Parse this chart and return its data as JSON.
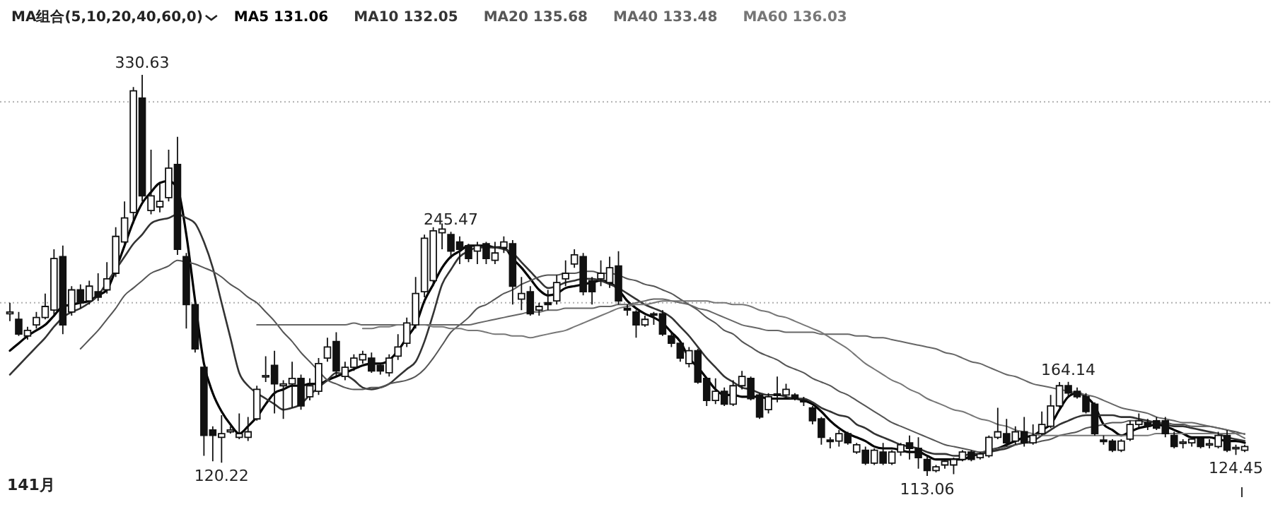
{
  "chart_data": {
    "type": "candlestick",
    "legend_title": "MA组合(5,10,20,40,60,0)",
    "legend": "top left",
    "grid": "y",
    "yticks": [
      {
        "value": 316,
        "label": null
      },
      {
        "value": 207,
        "label": null
      }
    ],
    "color": "#111111",
    "categories": [
      null,
      null,
      null,
      null,
      null,
      null,
      null,
      null,
      null,
      null,
      null,
      null,
      null,
      null,
      null,
      null,
      null,
      null,
      null,
      null,
      null,
      null,
      null,
      null,
      null,
      null,
      null,
      null,
      null,
      null,
      null,
      null,
      null,
      null,
      null,
      null,
      null,
      null,
      null,
      null,
      null,
      null,
      null,
      null,
      null,
      null,
      null,
      null,
      null,
      null,
      null,
      null,
      null,
      null,
      null,
      null,
      null,
      null,
      null,
      null,
      null,
      null,
      null,
      null,
      null,
      null,
      null,
      null,
      null,
      null,
      null,
      null,
      null,
      null,
      null,
      null,
      null,
      null,
      null,
      null,
      null,
      null,
      null,
      null,
      null,
      null,
      null,
      null,
      null,
      null,
      null,
      null,
      null,
      null,
      null,
      null,
      null,
      null,
      null,
      null,
      null,
      null,
      null,
      null,
      null,
      null,
      null,
      null,
      null,
      null,
      null,
      null,
      null,
      null,
      null,
      null,
      null,
      null,
      null,
      null,
      null,
      null,
      null,
      null,
      null,
      null,
      null,
      null,
      null,
      null,
      null,
      null,
      null,
      null,
      null,
      null,
      null,
      null,
      null,
      null,
      null
    ],
    "ohlc": [
      [
        201,
        207,
        197,
        202
      ],
      [
        198,
        202,
        189,
        190
      ],
      [
        189,
        194,
        187,
        192
      ],
      [
        195,
        202,
        193,
        199
      ],
      [
        199,
        212,
        198,
        205
      ],
      [
        203,
        236,
        200,
        231
      ],
      [
        232,
        238,
        190,
        195
      ],
      [
        202,
        216,
        200,
        214
      ],
      [
        214,
        217,
        204,
        207
      ],
      [
        208,
        219,
        206,
        216
      ],
      [
        213,
        223,
        208,
        210
      ],
      [
        214,
        229,
        212,
        220
      ],
      [
        223,
        248,
        221,
        243
      ],
      [
        240,
        262,
        238,
        253
      ],
      [
        256,
        324,
        250,
        322
      ],
      [
        318,
        330.63,
        262,
        265
      ],
      [
        257,
        290,
        255,
        265
      ],
      [
        259,
        272,
        256,
        262
      ],
      [
        264,
        290,
        262,
        280
      ],
      [
        282,
        297,
        233,
        236
      ],
      [
        232,
        234,
        193,
        206
      ],
      [
        206,
        206,
        180,
        182
      ],
      [
        172,
        172,
        124,
        135
      ],
      [
        138,
        140,
        121,
        135
      ],
      [
        134,
        146,
        120.22,
        136
      ],
      [
        137,
        140,
        136,
        138
      ],
      [
        134,
        147,
        133,
        136
      ],
      [
        134,
        145,
        132,
        137
      ],
      [
        144,
        162,
        143,
        160
      ],
      [
        167,
        178,
        164,
        167.5
      ],
      [
        173,
        181,
        147,
        163
      ],
      [
        162,
        165,
        144,
        163
      ],
      [
        163,
        175,
        150,
        166
      ],
      [
        166,
        168,
        149,
        151
      ],
      [
        156,
        166,
        154,
        162
      ],
      [
        159,
        177,
        157,
        174
      ],
      [
        177,
        188,
        175,
        183
      ],
      [
        186,
        191,
        167,
        170
      ],
      [
        167,
        175,
        165,
        172
      ],
      [
        172,
        179,
        170,
        177
      ],
      [
        176,
        181,
        174,
        179
      ],
      [
        177,
        180,
        169,
        170
      ],
      [
        173,
        174,
        168,
        170
      ],
      [
        169,
        179,
        167,
        177
      ],
      [
        178,
        190,
        176,
        183
      ],
      [
        185,
        199,
        183,
        196
      ],
      [
        195,
        221,
        193,
        212
      ],
      [
        213,
        244,
        210,
        242
      ],
      [
        219,
        248,
        216,
        246
      ],
      [
        245,
        250,
        236,
        247
      ],
      [
        244,
        245.47,
        231,
        235
      ],
      [
        240,
        243,
        228,
        236
      ],
      [
        238,
        239,
        229,
        231
      ],
      [
        235,
        240,
        228,
        238
      ],
      [
        239,
        240,
        228,
        231
      ],
      [
        230,
        240,
        228,
        234
      ],
      [
        237,
        243,
        234,
        240
      ],
      [
        239,
        241,
        206,
        216
      ],
      [
        209,
        221,
        203,
        212
      ],
      [
        213,
        216,
        200,
        201
      ],
      [
        203,
        207,
        200,
        205
      ],
      [
        207,
        214,
        203,
        206
      ],
      [
        208,
        222,
        206,
        218
      ],
      [
        220,
        230,
        216,
        223
      ],
      [
        228,
        236,
        226,
        233
      ],
      [
        232,
        234,
        211,
        213
      ],
      [
        219,
        221,
        206,
        213
      ],
      [
        220,
        230,
        216,
        223
      ],
      [
        218,
        232,
        215,
        226
      ],
      [
        227,
        235,
        206,
        208
      ],
      [
        204,
        206,
        200,
        203
      ],
      [
        202,
        203,
        188,
        195
      ],
      [
        195,
        200,
        194,
        198
      ],
      [
        201,
        202,
        195,
        200.5
      ],
      [
        201,
        203,
        189,
        190
      ],
      [
        189,
        191,
        183,
        185
      ],
      [
        185,
        186,
        175,
        177
      ],
      [
        174,
        183,
        172,
        181
      ],
      [
        181,
        182,
        163,
        164
      ],
      [
        166,
        166,
        151,
        154
      ],
      [
        154,
        166,
        152,
        159
      ],
      [
        159,
        161,
        151,
        152
      ],
      [
        152,
        165,
        151,
        162
      ],
      [
        162,
        170,
        160,
        167
      ],
      [
        166,
        167,
        154,
        155
      ],
      [
        157,
        158,
        144,
        145
      ],
      [
        149,
        158,
        147,
        156
      ],
      [
        157,
        167,
        153,
        157.5
      ],
      [
        157,
        163,
        155,
        160
      ],
      [
        157,
        158,
        154,
        155
      ],
      [
        154,
        156,
        151,
        153.5
      ],
      [
        150,
        151,
        141,
        143
      ],
      [
        144,
        145,
        130,
        134
      ],
      [
        132,
        134,
        128,
        132.5
      ],
      [
        132,
        138,
        129,
        136
      ],
      [
        136,
        137,
        130,
        131
      ],
      [
        126,
        131,
        125,
        130
      ],
      [
        127,
        129,
        119,
        120
      ],
      [
        120,
        128,
        119,
        127
      ],
      [
        126,
        131,
        119,
        120
      ],
      [
        120,
        127,
        119,
        126
      ],
      [
        126,
        131,
        124,
        130
      ],
      [
        131,
        135,
        122,
        128
      ],
      [
        128,
        134,
        117,
        123
      ],
      [
        122,
        124,
        113.06,
        116
      ],
      [
        116,
        119,
        115,
        118
      ],
      [
        119,
        122,
        117,
        121
      ],
      [
        119,
        123,
        114,
        122
      ],
      [
        122,
        127,
        121,
        126
      ],
      [
        126,
        127,
        121,
        122
      ],
      [
        123,
        126,
        122,
        125
      ],
      [
        124,
        135,
        123,
        134
      ],
      [
        134,
        150,
        133,
        137
      ],
      [
        136,
        144,
        129,
        131
      ],
      [
        132,
        140,
        130,
        137
      ],
      [
        137,
        145,
        129,
        131
      ],
      [
        131,
        141,
        130,
        135
      ],
      [
        136,
        148,
        135,
        141
      ],
      [
        140,
        157,
        139,
        151
      ],
      [
        151,
        164,
        150,
        162
      ],
      [
        162,
        164.14,
        156,
        158
      ],
      [
        159,
        161,
        155,
        156
      ],
      [
        156,
        158,
        147,
        148
      ],
      [
        152,
        153,
        135,
        136
      ],
      [
        132,
        135,
        130,
        132.5
      ],
      [
        132,
        133,
        126,
        127
      ],
      [
        127,
        133,
        126,
        132
      ],
      [
        133,
        143,
        132,
        141
      ],
      [
        141,
        147,
        139,
        143
      ],
      [
        142,
        144,
        138,
        140
      ],
      [
        143,
        145,
        138,
        139
      ],
      [
        143,
        145,
        134,
        136
      ],
      [
        135,
        137,
        128,
        129
      ],
      [
        131,
        133,
        128,
        131.5
      ],
      [
        131,
        134,
        129,
        133
      ],
      [
        133,
        134,
        128,
        129
      ],
      [
        130,
        133,
        128,
        130.5
      ],
      [
        129,
        137,
        128,
        135
      ],
      [
        135,
        138,
        126,
        127
      ],
      [
        128,
        130,
        124.45,
        128.5
      ],
      [
        127,
        130,
        126,
        129
      ]
    ],
    "series": [
      {
        "name": "MA5 131.06",
        "type": "line",
        "color": "#000000",
        "values": [
          181,
          185,
          189,
          192,
          195,
          200,
          205,
          206,
          207,
          208,
          211,
          214,
          225,
          238,
          251,
          261,
          267,
          272,
          273,
          269,
          244,
          208,
          174,
          158,
          148,
          141,
          136,
          140,
          145,
          152,
          158,
          160,
          162,
          162,
          163,
          163,
          165,
          167,
          169,
          171,
          173,
          174,
          174,
          176,
          181,
          188,
          195,
          208,
          217,
          226,
          232,
          235,
          238,
          238,
          238,
          237,
          237,
          231,
          226,
          220,
          214,
          211,
          212,
          215,
          216,
          217,
          218,
          219,
          218,
          214,
          208,
          204,
          201,
          199,
          196,
          191,
          186,
          177,
          172,
          166,
          160,
          157,
          157,
          156,
          156,
          156,
          155,
          155,
          155,
          155,
          154,
          152,
          148,
          143,
          139,
          136,
          134,
          132,
          129,
          128,
          128,
          127,
          126,
          126,
          124,
          122,
          122,
          122,
          122,
          124,
          125,
          127,
          128,
          130,
          132,
          134,
          135,
          138,
          141,
          149,
          156,
          158,
          156,
          151,
          141,
          138,
          135,
          137,
          139,
          140,
          141,
          140,
          138,
          136,
          134,
          134,
          134,
          133,
          132,
          132,
          131.06
        ]
      },
      {
        "name": "MA10 132.05",
        "type": "line",
        "color": "#333333",
        "values": [
          168,
          173,
          178,
          183,
          188,
          194,
          199,
          202,
          204,
          207,
          211,
          218,
          225,
          232,
          239,
          244,
          250,
          252,
          253,
          255,
          253,
          250,
          240,
          226,
          207,
          188,
          169,
          162,
          158,
          155,
          152,
          149,
          150,
          152,
          157,
          161,
          165,
          169,
          168,
          165,
          161,
          160,
          161,
          163,
          167,
          171,
          175,
          186,
          201,
          217,
          225,
          232,
          235,
          237,
          237,
          237,
          236,
          234,
          229,
          224,
          219,
          215,
          216,
          218,
          219,
          220,
          220,
          219,
          217,
          215,
          212,
          209,
          206,
          204,
          202,
          199,
          194,
          189,
          183,
          177,
          172,
          167,
          164,
          161,
          160,
          158,
          157,
          157,
          156,
          155,
          155,
          153,
          150,
          148,
          146,
          145,
          141,
          139,
          136,
          134,
          132,
          130,
          129,
          128,
          126,
          125,
          125,
          124,
          124,
          125,
          125,
          126,
          127,
          128,
          130,
          131,
          132,
          135,
          138,
          141,
          143,
          145,
          146,
          146,
          146,
          146,
          145,
          145,
          144,
          143,
          142,
          141,
          140,
          140,
          139,
          138,
          137,
          136,
          134,
          133,
          132.05
        ]
      },
      {
        "name": "MA20 135.68",
        "type": "line",
        "color": "#555555",
        "values": [
          null,
          null,
          null,
          null,
          null,
          null,
          null,
          null,
          182,
          187,
          192,
          198,
          204,
          211,
          215,
          219,
          223,
          225,
          227,
          230,
          229,
          228,
          226,
          224,
          221,
          217,
          214,
          210,
          207,
          202,
          197,
          191,
          186,
          180,
          175,
          170,
          165,
          163,
          161,
          160,
          160,
          161,
          161,
          163,
          164,
          165,
          167,
          171,
          177,
          184,
          191,
          195,
          199,
          204,
          206,
          209,
          212,
          214,
          217,
          219,
          221,
          222,
          222,
          223,
          223,
          224,
          224,
          223,
          223,
          222,
          220,
          219,
          217,
          216,
          214,
          212,
          209,
          206,
          203,
          199,
          196,
          192,
          190,
          186,
          183,
          180,
          178,
          176,
          173,
          171,
          169,
          166,
          164,
          162,
          159,
          157,
          154,
          151,
          148,
          145,
          142,
          140,
          138,
          136,
          134,
          132,
          130,
          129,
          128,
          127,
          126,
          127,
          128,
          129,
          130,
          131,
          131,
          132,
          133,
          135,
          136,
          137,
          139,
          140,
          141,
          142,
          142,
          143,
          143,
          142,
          142,
          142,
          141,
          141,
          140,
          140,
          140,
          139,
          138,
          137,
          135.68
        ]
      },
      {
        "name": "MA40 133.48",
        "type": "line",
        "color": "#666666",
        "values": [
          null,
          null,
          null,
          null,
          null,
          null,
          null,
          null,
          null,
          null,
          null,
          null,
          null,
          null,
          null,
          null,
          null,
          null,
          null,
          null,
          null,
          null,
          null,
          null,
          null,
          null,
          null,
          null,
          195,
          195,
          195,
          195,
          195,
          195,
          195,
          195,
          195,
          195,
          195,
          196,
          195,
          195,
          195,
          195,
          195,
          195,
          195,
          195,
          195,
          195,
          195,
          195,
          195,
          196,
          197,
          198,
          199,
          200,
          201,
          202,
          202,
          203,
          203,
          204,
          204,
          204,
          204,
          205,
          205,
          206,
          206,
          207,
          208,
          209,
          209,
          208,
          207,
          206,
          204,
          203,
          201,
          199,
          197,
          195,
          194,
          193,
          192,
          192,
          191,
          191,
          191,
          191,
          190,
          190,
          190,
          190,
          189,
          189,
          188,
          188,
          187,
          186,
          185,
          184,
          183,
          182,
          180,
          179,
          177,
          175,
          174,
          172,
          170,
          168,
          167,
          165,
          163,
          162,
          161,
          160,
          159,
          158,
          157,
          156,
          154,
          152,
          150,
          149,
          148,
          147,
          145,
          144,
          143,
          142,
          142,
          141,
          140,
          139,
          138,
          136,
          133.48
        ]
      },
      {
        "name": "MA60 136.03",
        "type": "line",
        "color": "#777777",
        "values": [
          null,
          null,
          null,
          null,
          null,
          null,
          null,
          null,
          null,
          null,
          null,
          null,
          null,
          null,
          null,
          null,
          null,
          null,
          null,
          null,
          null,
          null,
          null,
          null,
          null,
          null,
          null,
          null,
          null,
          null,
          null,
          null,
          null,
          null,
          null,
          null,
          null,
          null,
          null,
          null,
          193,
          193,
          194,
          194,
          195,
          195,
          195,
          195,
          194,
          194,
          193,
          193,
          192,
          192,
          191,
          190,
          190,
          189,
          189,
          188,
          189,
          190,
          191,
          192,
          194,
          196,
          198,
          200,
          202,
          204,
          205,
          206,
          206,
          207,
          208,
          208,
          208,
          208,
          208,
          208,
          207,
          207,
          206,
          206,
          205,
          203,
          202,
          200,
          199,
          197,
          195,
          193,
          191,
          188,
          185,
          182,
          178,
          174,
          171,
          168,
          165,
          163,
          160,
          158,
          155,
          153,
          151,
          149,
          148,
          146,
          144,
          143,
          141,
          140,
          138,
          137,
          136,
          135,
          135,
          135,
          135,
          135,
          135,
          135,
          135,
          135,
          135,
          135,
          135,
          135,
          136,
          136,
          136,
          136,
          136,
          136,
          136,
          136,
          136,
          136,
          136.03
        ]
      }
    ],
    "annotations": [
      "141月",
      {
        "text": "330.63",
        "y": 330.63
      },
      {
        "text": "120.22",
        "y": 120.22
      },
      {
        "text": "245.47",
        "y": 245.47
      },
      {
        "text": "113.06",
        "y": 113.06
      },
      {
        "text": "164.14",
        "y": 164.14
      },
      {
        "text": "124.45",
        "y": 124.45
      }
    ]
  }
}
